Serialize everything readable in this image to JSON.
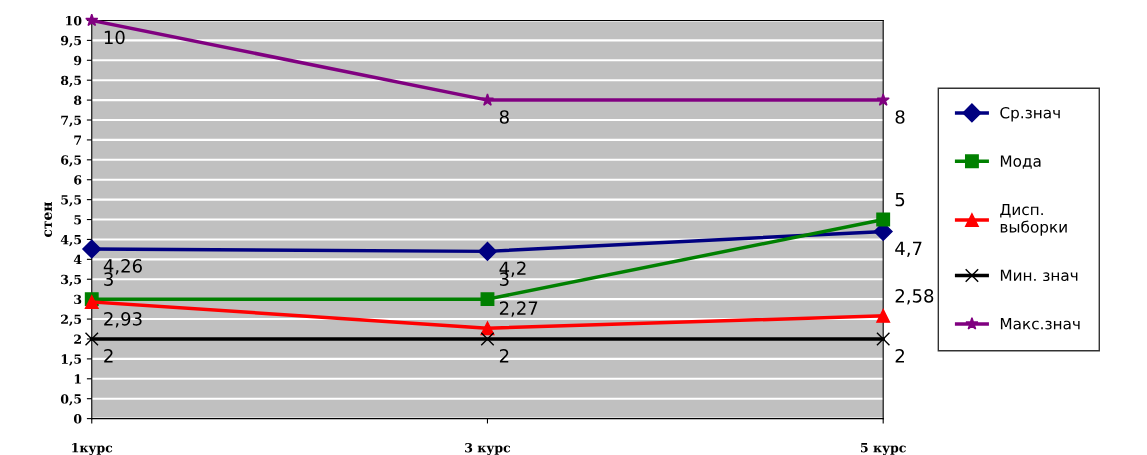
{
  "chart_data": {
    "type": "line",
    "ylabel": "стен",
    "categories": [
      "1курс",
      "3 курс",
      "5 курс"
    ],
    "series": [
      {
        "name": "Ср.знач",
        "color": "#000080",
        "marker": "diamond",
        "values": [
          4.26,
          4.2,
          4.7
        ],
        "value_labels": [
          "4,26",
          "4,2",
          "4,7"
        ]
      },
      {
        "name": "Мода",
        "color": "#008000",
        "marker": "square",
        "values": [
          3,
          3,
          5
        ],
        "value_labels": [
          "3",
          "3",
          "5"
        ]
      },
      {
        "name": "Дисп.\nвыборки",
        "color": "#ff0000",
        "marker": "triangle",
        "values": [
          2.93,
          2.27,
          2.58
        ],
        "value_labels": [
          "2,93",
          "2,27",
          "2,58"
        ]
      },
      {
        "name": "Мин. знач",
        "color": "#000000",
        "marker": "cross",
        "values": [
          2,
          2,
          2
        ],
        "value_labels": [
          "2",
          "2",
          "2"
        ]
      },
      {
        "name": "Макс.знач",
        "color": "#800080",
        "marker": "star",
        "values": [
          10,
          8,
          8
        ],
        "value_labels": [
          "10",
          "8",
          "8"
        ]
      }
    ],
    "ylim": [
      0,
      10
    ],
    "yticks": [
      0,
      {
        "value": 0.5,
        "label": "0,5"
      },
      1,
      {
        "value": 1.5,
        "label": "1,5"
      },
      2,
      {
        "value": 2.5,
        "label": "2,5"
      },
      3,
      {
        "value": 3.5,
        "label": "3,5"
      },
      4,
      {
        "value": 4.5,
        "label": "4,5"
      },
      5,
      {
        "value": 5.5,
        "label": "5,5"
      },
      6,
      {
        "value": 6.5,
        "label": "6,5"
      },
      7,
      {
        "value": 7.5,
        "label": "7,5"
      },
      8,
      {
        "value": 8.5,
        "label": "8,5"
      },
      9,
      {
        "value": 9.5,
        "label": "9,5"
      },
      10
    ],
    "grid": "y",
    "legend": "right"
  }
}
